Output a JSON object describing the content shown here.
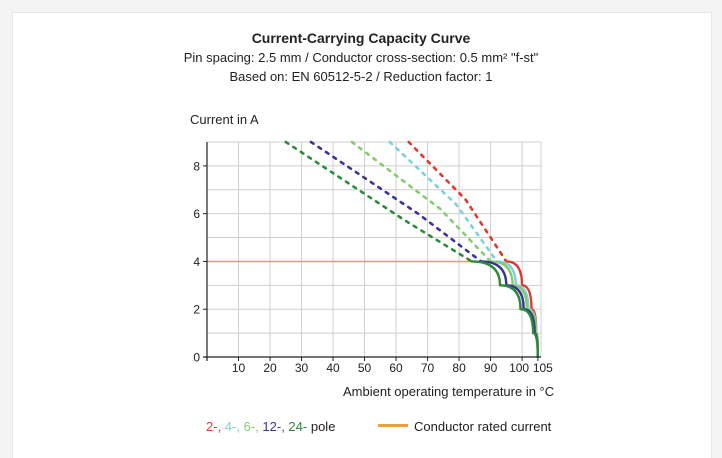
{
  "title": "Current-Carrying Capacity Curve",
  "subtitle_line1": "Pin spacing: 2.5 mm / Conductor cross-section: 0.5 mm² \"f-st\"",
  "subtitle_line2": "Based on: EN 60512-5-2 / Reduction factor: 1",
  "chart_data": {
    "type": "line",
    "ylabel": "Current in A",
    "xlabel": "Ambient operating temperature in °C",
    "xlim": [
      0,
      106
    ],
    "ylim": [
      0,
      9
    ],
    "xticks": [
      10,
      20,
      30,
      40,
      50,
      60,
      70,
      80,
      90,
      100,
      105
    ],
    "yticks": [
      0,
      2,
      4,
      6,
      8
    ],
    "grid": true,
    "rated_current": {
      "name": "Conductor rated current",
      "value": 4,
      "x_end": 86,
      "color": "#f0a040"
    },
    "series": [
      {
        "color": "#e03a2e",
        "dashed": [
          [
            64,
            9
          ],
          [
            82,
            6.6
          ],
          [
            95,
            4
          ]
        ],
        "solid": [
          [
            95,
            4
          ],
          [
            100,
            3
          ],
          [
            103,
            2
          ],
          [
            104.5,
            1
          ],
          [
            105,
            0
          ]
        ]
      },
      {
        "color": "#7fd0de",
        "dashed": [
          [
            58,
            9
          ],
          [
            79,
            6.4
          ],
          [
            92,
            4
          ]
        ],
        "solid": [
          [
            92,
            4
          ],
          [
            98,
            3
          ],
          [
            102,
            2
          ],
          [
            104.5,
            1
          ],
          [
            105,
            0
          ]
        ]
      },
      {
        "color": "#86cc6e",
        "dashed": [
          [
            46,
            9
          ],
          [
            74,
            6.2
          ],
          [
            90,
            4
          ]
        ],
        "solid": [
          [
            90,
            4
          ],
          [
            97,
            3
          ],
          [
            101.5,
            2
          ],
          [
            104.5,
            1
          ],
          [
            105,
            0
          ]
        ]
      },
      {
        "color": "#3a3498",
        "dashed": [
          [
            33,
            9
          ],
          [
            67,
            6.0
          ],
          [
            87,
            4
          ]
        ],
        "solid": [
          [
            87,
            4
          ],
          [
            95,
            3
          ],
          [
            100.5,
            2
          ],
          [
            104,
            1
          ],
          [
            105,
            0
          ]
        ]
      },
      {
        "color": "#2d8a3a",
        "dashed": [
          [
            25,
            9
          ],
          [
            63,
            5.7
          ],
          [
            84,
            4
          ]
        ],
        "solid": [
          [
            84,
            4
          ],
          [
            93,
            3
          ],
          [
            99.5,
            2
          ],
          [
            103.5,
            1
          ],
          [
            105,
            0
          ]
        ]
      }
    ]
  },
  "legend": {
    "poles": [
      {
        "text": "2-",
        "color": "#e03a2e"
      },
      {
        "text": "4-",
        "color": "#7fd0de"
      },
      {
        "text": "6-",
        "color": "#86cc6e"
      },
      {
        "text": "12-",
        "color": "#3a3498"
      },
      {
        "text": "24-",
        "color": "#2d8a3a"
      }
    ],
    "poles_suffix": "pole",
    "rated_label": "Conductor rated current"
  }
}
